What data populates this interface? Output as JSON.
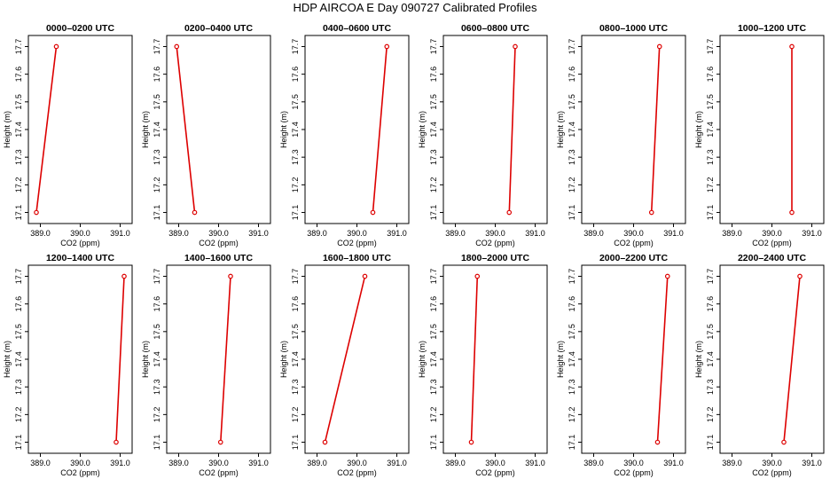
{
  "title": "HDP AIRCOA E  Day 090727  Calibrated Profiles",
  "colors": {
    "series": "#dd0000",
    "axis": "#000000"
  },
  "chart_data": [
    {
      "type": "line",
      "title": "0000–0200 UTC",
      "xlabel": "CO2 (ppm)",
      "ylabel": "Height (m)",
      "xlim": [
        388.7,
        391.3
      ],
      "ylim": [
        17.06,
        17.74
      ],
      "xticks": [
        "389.0",
        "390.0",
        "391.0"
      ],
      "yticks": [
        "17.1",
        "17.2",
        "17.3",
        "17.4",
        "17.5",
        "17.6",
        "17.7"
      ],
      "x": [
        388.9,
        389.4
      ],
      "y": [
        17.1,
        17.7
      ]
    },
    {
      "type": "line",
      "title": "0200–0400 UTC",
      "xlabel": "CO2 (ppm)",
      "ylabel": "Height (m)",
      "xlim": [
        388.7,
        391.3
      ],
      "ylim": [
        17.06,
        17.74
      ],
      "xticks": [
        "389.0",
        "390.0",
        "391.0"
      ],
      "yticks": [
        "17.1",
        "17.2",
        "17.3",
        "17.4",
        "17.5",
        "17.6",
        "17.7"
      ],
      "x": [
        389.4,
        388.95
      ],
      "y": [
        17.1,
        17.7
      ]
    },
    {
      "type": "line",
      "title": "0400–0600 UTC",
      "xlabel": "CO2 (ppm)",
      "ylabel": "Height (m)",
      "xlim": [
        388.7,
        391.3
      ],
      "ylim": [
        17.06,
        17.74
      ],
      "xticks": [
        "389.0",
        "390.0",
        "391.0"
      ],
      "yticks": [
        "17.1",
        "17.2",
        "17.3",
        "17.4",
        "17.5",
        "17.6",
        "17.7"
      ],
      "x": [
        390.4,
        390.75
      ],
      "y": [
        17.1,
        17.7
      ]
    },
    {
      "type": "line",
      "title": "0600–0800 UTC",
      "xlabel": "CO2 (ppm)",
      "ylabel": "Height (m)",
      "xlim": [
        388.7,
        391.3
      ],
      "ylim": [
        17.06,
        17.74
      ],
      "xticks": [
        "389.0",
        "390.0",
        "391.0"
      ],
      "yticks": [
        "17.1",
        "17.2",
        "17.3",
        "17.4",
        "17.5",
        "17.6",
        "17.7"
      ],
      "x": [
        390.35,
        390.5
      ],
      "y": [
        17.1,
        17.7
      ]
    },
    {
      "type": "line",
      "title": "0800–1000 UTC",
      "xlabel": "CO2 (ppm)",
      "ylabel": "Height (m)",
      "xlim": [
        388.7,
        391.3
      ],
      "ylim": [
        17.06,
        17.74
      ],
      "xticks": [
        "389.0",
        "390.0",
        "391.0"
      ],
      "yticks": [
        "17.1",
        "17.2",
        "17.3",
        "17.4",
        "17.5",
        "17.6",
        "17.7"
      ],
      "x": [
        390.45,
        390.65
      ],
      "y": [
        17.1,
        17.7
      ]
    },
    {
      "type": "line",
      "title": "1000–1200 UTC",
      "xlabel": "CO2 (ppm)",
      "ylabel": "Height (m)",
      "xlim": [
        388.7,
        391.3
      ],
      "ylim": [
        17.06,
        17.74
      ],
      "xticks": [
        "389.0",
        "390.0",
        "391.0"
      ],
      "yticks": [
        "17.1",
        "17.2",
        "17.3",
        "17.4",
        "17.5",
        "17.6",
        "17.7"
      ],
      "x": [
        390.5,
        390.5
      ],
      "y": [
        17.1,
        17.7
      ]
    },
    {
      "type": "line",
      "title": "1200–1400 UTC",
      "xlabel": "CO2 (ppm)",
      "ylabel": "Height (m)",
      "xlim": [
        388.7,
        391.3
      ],
      "ylim": [
        17.06,
        17.74
      ],
      "xticks": [
        "389.0",
        "390.0",
        "391.0"
      ],
      "yticks": [
        "17.1",
        "17.2",
        "17.3",
        "17.4",
        "17.5",
        "17.6",
        "17.7"
      ],
      "x": [
        390.9,
        391.1
      ],
      "y": [
        17.1,
        17.7
      ]
    },
    {
      "type": "line",
      "title": "1400–1600 UTC",
      "xlabel": "CO2 (ppm)",
      "ylabel": "Height (m)",
      "xlim": [
        388.7,
        391.3
      ],
      "ylim": [
        17.06,
        17.74
      ],
      "xticks": [
        "389.0",
        "390.0",
        "391.0"
      ],
      "yticks": [
        "17.1",
        "17.2",
        "17.3",
        "17.4",
        "17.5",
        "17.6",
        "17.7"
      ],
      "x": [
        390.05,
        390.3
      ],
      "y": [
        17.1,
        17.7
      ]
    },
    {
      "type": "line",
      "title": "1600–1800 UTC",
      "xlabel": "CO2 (ppm)",
      "ylabel": "Height (m)",
      "xlim": [
        388.7,
        391.3
      ],
      "ylim": [
        17.06,
        17.74
      ],
      "xticks": [
        "389.0",
        "390.0",
        "391.0"
      ],
      "yticks": [
        "17.1",
        "17.2",
        "17.3",
        "17.4",
        "17.5",
        "17.6",
        "17.7"
      ],
      "x": [
        389.2,
        390.2
      ],
      "y": [
        17.1,
        17.7
      ]
    },
    {
      "type": "line",
      "title": "1800–2000 UTC",
      "xlabel": "CO2 (ppm)",
      "ylabel": "Height (m)",
      "xlim": [
        388.7,
        391.3
      ],
      "ylim": [
        17.06,
        17.74
      ],
      "xticks": [
        "389.0",
        "390.0",
        "391.0"
      ],
      "yticks": [
        "17.1",
        "17.2",
        "17.3",
        "17.4",
        "17.5",
        "17.6",
        "17.7"
      ],
      "x": [
        389.4,
        389.55
      ],
      "y": [
        17.1,
        17.7
      ]
    },
    {
      "type": "line",
      "title": "2000–2200 UTC",
      "xlabel": "CO2 (ppm)",
      "ylabel": "Height (m)",
      "xlim": [
        388.7,
        391.3
      ],
      "ylim": [
        17.06,
        17.74
      ],
      "xticks": [
        "389.0",
        "390.0",
        "391.0"
      ],
      "yticks": [
        "17.1",
        "17.2",
        "17.3",
        "17.4",
        "17.5",
        "17.6",
        "17.7"
      ],
      "x": [
        390.6,
        390.85
      ],
      "y": [
        17.1,
        17.7
      ]
    },
    {
      "type": "line",
      "title": "2200–2400 UTC",
      "xlabel": "CO2 (ppm)",
      "ylabel": "Height (m)",
      "xlim": [
        388.7,
        391.3
      ],
      "ylim": [
        17.06,
        17.74
      ],
      "xticks": [
        "389.0",
        "390.0",
        "391.0"
      ],
      "yticks": [
        "17.1",
        "17.2",
        "17.3",
        "17.4",
        "17.5",
        "17.6",
        "17.7"
      ],
      "x": [
        390.3,
        390.7
      ],
      "y": [
        17.1,
        17.7
      ]
    }
  ]
}
